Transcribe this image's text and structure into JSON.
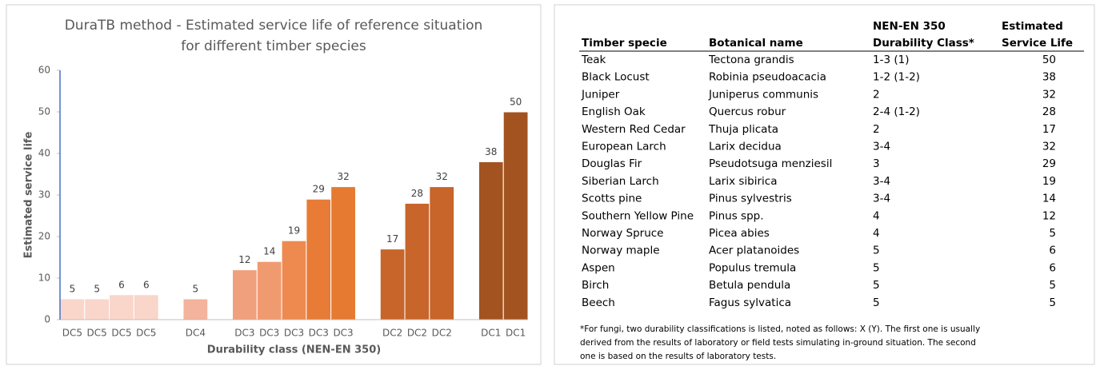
{
  "chart_data": {
    "type": "bar",
    "title": [
      "DuraTB method - Estimated service life of reference situation",
      "for different timber species"
    ],
    "x_label": "Durability class (NEN-EN 350)",
    "y_label": "Estimated service life",
    "categories": [
      "DC5",
      "DC5",
      "DC5",
      "DC5",
      "DC4",
      "DC3",
      "DC3",
      "DC3",
      "DC3",
      "DC3",
      "DC2",
      "DC2",
      "DC2",
      "DC1",
      "DC1"
    ],
    "values": [
      5,
      5,
      6,
      6,
      5,
      12,
      14,
      19,
      29,
      32,
      17,
      28,
      32,
      38,
      50
    ],
    "colors": [
      "#f9d5ca",
      "#f9d5ca",
      "#f9d5ca",
      "#f9d5ca",
      "#f4b39c",
      "#f0a07c",
      "#f09a70",
      "#ee8a50",
      "#e87b35",
      "#e57a30",
      "#c8652a",
      "#c8652a",
      "#c8652a",
      "#a3531f",
      "#a3531f"
    ],
    "ylim": [
      0,
      60
    ],
    "yticks": [
      0,
      10,
      20,
      30,
      40,
      50,
      60
    ],
    "grid": false
  },
  "table": {
    "headers": [
      [
        "Timber specie"
      ],
      [
        "Botanical name"
      ],
      [
        "NEN-EN 350",
        "Durability Class*"
      ],
      [
        "Estimated",
        "Service Life"
      ]
    ],
    "rows": [
      [
        "Teak",
        "Tectona grandis",
        "1-3 (1)",
        50
      ],
      [
        "Black Locust",
        "Robinia pseudoacacia",
        "1-2 (1-2)",
        38
      ],
      [
        "Juniper",
        "Juniperus communis",
        "2",
        32
      ],
      [
        "English Oak",
        "Quercus robur",
        "2-4 (1-2)",
        28
      ],
      [
        "Western Red Cedar",
        "Thuja plicata",
        "2",
        17
      ],
      [
        "European Larch",
        "Larix decidua",
        "3-4",
        32
      ],
      [
        "Douglas Fir",
        "Pseudotsuga menziesil",
        "3",
        29
      ],
      [
        "Siberian Larch",
        "Larix sibirica",
        "3-4",
        19
      ],
      [
        "Scotts pine",
        "Pinus sylvestris",
        "3-4",
        14
      ],
      [
        "Southern Yellow Pine",
        "Pinus spp.",
        "4",
        12
      ],
      [
        "Norway Spruce",
        "Picea abies",
        "4",
        5
      ],
      [
        "Norway maple",
        "Acer platanoides",
        "5",
        6
      ],
      [
        "Aspen",
        "Populus tremula",
        "5",
        6
      ],
      [
        "Birch",
        "Betula pendula",
        "5",
        5
      ],
      [
        "Beech",
        "Fagus sylvatica",
        "5",
        5
      ]
    ],
    "footnote": [
      "*For fungi, two durability classifications is listed, noted as follows: X (Y). The first one is usually",
      "derived from the results of laboratory or field tests simulating in-ground situation. The second",
      "one is based on the results of laboratory tests."
    ]
  }
}
